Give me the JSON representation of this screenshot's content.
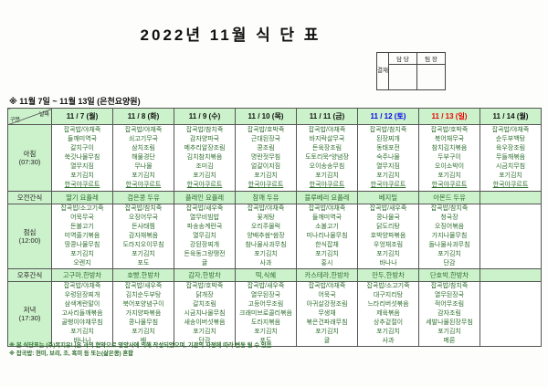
{
  "title": "2022년 11월 식 단 표",
  "subtitle": "※ 11월 7일 ~ 11월 13일 (은천요양원)",
  "approval": {
    "title": "결재",
    "columns": [
      "담 당",
      "팀 장"
    ]
  },
  "corner": {
    "top": "날짜",
    "bottom": "구분"
  },
  "colors": {
    "green_bg": "#ccf2cb",
    "menu_text": "#2d6e2d",
    "saturday_blue": "#0000ee",
    "sunday_red": "#ee0000",
    "weekday_black": "#111111"
  },
  "underlined_items": [
    "한국야쿠르트"
  ],
  "columns": [
    {
      "label": "11 / 7 (월)",
      "color": "#111111"
    },
    {
      "label": "11 / 8 (화)",
      "color": "#111111"
    },
    {
      "label": "11 / 9 (수)",
      "color": "#111111"
    },
    {
      "label": "11 / 10 (목)",
      "color": "#111111"
    },
    {
      "label": "11 / 11 (금)",
      "color": "#111111"
    },
    {
      "label": "11 / 12 (토)",
      "color": "#0000ee"
    },
    {
      "label": "11 / 13 (일)",
      "color": "#ee0000"
    },
    {
      "label": "11 / 14 (월)",
      "color": "#111111"
    }
  ],
  "rows": [
    {
      "key": "breakfast",
      "label": "아침",
      "time": "(07:30)",
      "kind": "meal",
      "cells": [
        [
          "잡곡밥/야채죽",
          "들깨미역국",
          "갈치구이",
          "쑥갓나물무침",
          "열무지짐",
          "포기김치",
          "한국야쿠르트"
        ],
        [
          "잡곡밥/야채죽",
          "쇠고기무국",
          "삼치조림",
          "해물경단",
          "무나물",
          "포기김치",
          "한국야쿠르트"
        ],
        [
          "잡곡밥/참치죽",
          "감자양파국",
          "메추리알장조림",
          "김치참치볶음",
          "조미김",
          "포기김치",
          "한국야쿠르트"
        ],
        [
          "잡곡밥/호박죽",
          "근대된장국",
          "콩조림",
          "명란젓무침",
          "얼갈이지짐",
          "포기김치",
          "한국야쿠르트"
        ],
        [
          "잡곡밥/야채죽",
          "바지락살무국",
          "돈육장조림",
          "도토리묵*양념장",
          "오이송송무침",
          "포기김치",
          "한국야쿠르트"
        ],
        [
          "잡곡밥/참치죽",
          "된장찌개",
          "동태포전",
          "숙주나물",
          "열무지짐",
          "포기김치",
          "한국야쿠르트"
        ],
        [
          "잡곡밥/호박죽",
          "북어채무국",
          "참치김치볶음",
          "두부구이",
          "오이소박이",
          "포기김치",
          "한국야쿠르트"
        ],
        [
          "잡곡밥/야채죽",
          "순두부백탕",
          "육우장조림",
          "무들깨볶음",
          "시금치무침",
          "포기김치",
          "한국야쿠르트"
        ]
      ]
    },
    {
      "key": "morning-snack",
      "label": "오전간식",
      "time": "",
      "kind": "snack",
      "cells": [
        [
          "딸기 요플레"
        ],
        [
          "검은콩 두유"
        ],
        [
          "플레인 요플레"
        ],
        [
          "참깨 두유"
        ],
        [
          "블루베리 요플레"
        ],
        [
          "베지밀"
        ],
        [
          "아몬드 두유"
        ],
        []
      ]
    },
    {
      "key": "lunch",
      "label": "점심",
      "time": "(12:00)",
      "kind": "meal",
      "cells": [
        [
          "잡곡밥/소고기죽",
          "어묵무국",
          "돈불고기",
          "미역줄기볶음",
          "땅콩나물무침",
          "포기김치",
          "오렌지"
        ],
        [
          "잡곡밥/참치죽",
          "오징어무국",
          "돈사태찜",
          "감자채볶음",
          "도라지오이무침",
          "포기김치",
          "포도"
        ],
        [
          "잡곡밥/새우죽",
          "열무비빔밥",
          "파송송계란국",
          "열무김치",
          "강된장찌개",
          "돈육동그랑땡전",
          "귤"
        ],
        [
          "잡곡밥/야채죽",
          "꽃게탕",
          "오리주물럭",
          "양배추쌈*쌈장",
          "참나물사과무침",
          "포기김치",
          "사과"
        ],
        [
          "잡곡밥/야채죽",
          "들깨미역국",
          "소불고기",
          "미나리나물무침",
          "한식잡채",
          "포기김치",
          "홍시"
        ],
        [
          "잡곡밥/새우죽",
          "콩나물국",
          "닭도리탕",
          "호박양파볶음",
          "우엉채조림",
          "포기김치",
          "바나나"
        ],
        [
          "잡곡밥/참치죽",
          "청국장",
          "오징어볶음",
          "가지나물무침",
          "돌나물사과무침",
          "포기김치",
          "단감"
        ],
        []
      ]
    },
    {
      "key": "afternoon-snack",
      "label": "오후간식",
      "time": "",
      "kind": "snack",
      "cells": [
        [
          "고구마,한방차"
        ],
        [
          "호빵,한방차"
        ],
        [
          "감자,한방차"
        ],
        [
          "떡,식혜"
        ],
        [
          "카스테라,한방차"
        ],
        [
          "만두,한방차"
        ],
        [
          "단호박,한방차"
        ],
        []
      ]
    },
    {
      "key": "dinner",
      "label": "저녁",
      "time": "(17:30)",
      "kind": "meal",
      "cells": [
        [
          "잡곡밥/야채죽",
          "우렁된장찌개",
          "삼색계란말이",
          "고사리들깨볶음",
          "골뱅이야채무침",
          "포기김치",
          "바나나"
        ],
        [
          "잡곡밥/새우죽",
          "김치순두부탕",
          "북어포양념구이",
          "가지양파볶음",
          "콩나물무침",
          "포기김치",
          "배"
        ],
        [
          "잡곡밥/호박죽",
          "닭개장",
          "갈치조림",
          "시금치나물무침",
          "새송이버섯볶음",
          "포기김치",
          "단감"
        ],
        [
          "잡곡밥/새우죽",
          "열무된장국",
          "고등어무조림",
          "크래미브로콜리볶음",
          "도라지볶음",
          "포기김치",
          "포도"
        ],
        [
          "잡곡밥/야채죽",
          "어묵국",
          "아귀살강정조림",
          "무생채",
          "볶은건파래무침",
          "포기김치",
          "귤"
        ],
        [
          "잡곡밥/소고기죽",
          "대구지리탕",
          "느타리버섯볶음",
          "제육볶음",
          "상추겉절이",
          "포기김치",
          "사과"
        ],
        [
          "잡곡밥/참치죽",
          "열무된장국",
          "적어무조림",
          "감자조림",
          "세발나물된장무침",
          "포기김치",
          "메론"
        ],
        []
      ]
    }
  ],
  "footnotes": [
    "※ 본 식단표는 (주)복지유니온 과의 협약으로 영양사에 의해 작성되었으며, 기관의 사정에 따라 변동 될 수 있음",
    "※ 잡곡밥: 현미, 보리, 조, 흑미 등 또는(삶은콩) 혼합"
  ]
}
